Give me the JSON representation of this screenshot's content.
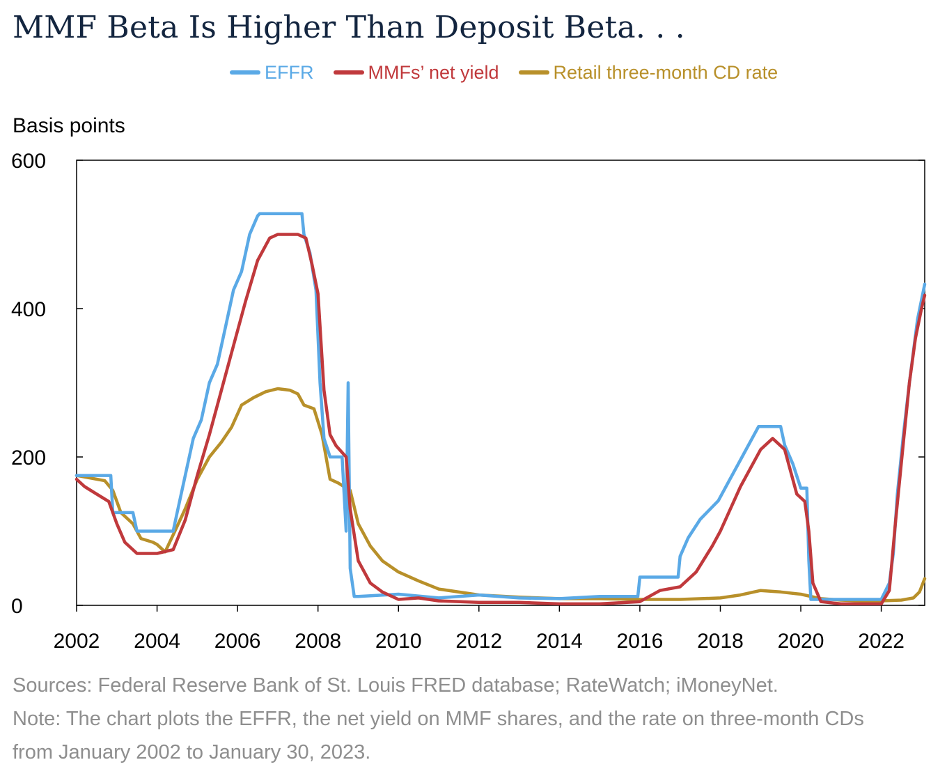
{
  "title": "MMF Beta Is Higher Than Deposit Beta. . .",
  "ylabel_text": "Basis points",
  "footer": {
    "sources": "Sources: Federal Reserve Bank of St. Louis FRED database; RateWatch; iMoneyNet.",
    "note_line1": "Note: The chart plots the EFFR, the net yield on MMF shares, and the rate on three-month CDs",
    "note_line2": "from January 2002 to January 30, 2023."
  },
  "colors": {
    "effr": "#5aa9e6",
    "mmf": "#c0393c",
    "cd": "#b8902a",
    "axis": "#000000"
  },
  "chart_data": {
    "type": "line",
    "title": "MMF Beta Is Higher Than Deposit Beta. . .",
    "ylabel": "Basis points",
    "xlabel": "",
    "xlim": [
      2002.0,
      2023.08
    ],
    "ylim": [
      0,
      600
    ],
    "x_ticks": [
      2002,
      2004,
      2006,
      2008,
      2010,
      2012,
      2014,
      2016,
      2018,
      2020,
      2022
    ],
    "x_tick_labels": [
      "2002",
      "2004",
      "2006",
      "2008",
      "2010",
      "2012",
      "2014",
      "2016",
      "2018",
      "2020",
      "2022"
    ],
    "y_ticks": [
      0,
      200,
      400,
      600
    ],
    "y_tick_labels": [
      "0",
      "200",
      "400",
      "600"
    ],
    "legend_position": "top",
    "series": [
      {
        "name": "EFFR",
        "key": "effr",
        "x": [
          2002.0,
          2002.05,
          2002.5,
          2002.85,
          2002.9,
          2003.4,
          2003.5,
          2004.0,
          2004.4,
          2004.5,
          2004.7,
          2004.9,
          2005.1,
          2005.3,
          2005.5,
          2005.7,
          2005.9,
          2006.1,
          2006.3,
          2006.5,
          2006.55,
          2007.6,
          2007.65,
          2007.8,
          2007.95,
          2008.05,
          2008.15,
          2008.3,
          2008.45,
          2008.6,
          2008.7,
          2008.75,
          2008.8,
          2008.9,
          2009.0,
          2010.0,
          2011.0,
          2012.0,
          2013.0,
          2014.0,
          2015.0,
          2015.95,
          2016.0,
          2016.95,
          2017.0,
          2017.2,
          2017.5,
          2017.95,
          2018.2,
          2018.45,
          2018.7,
          2018.95,
          2019.5,
          2019.6,
          2019.8,
          2020.0,
          2020.15,
          2020.2,
          2020.25,
          2020.4,
          2021.0,
          2022.0,
          2022.2,
          2022.3,
          2022.4,
          2022.55,
          2022.7,
          2022.9,
          2023.08
        ],
        "y": [
          175,
          175,
          175,
          175,
          125,
          125,
          100,
          100,
          100,
          125,
          175,
          225,
          250,
          300,
          325,
          375,
          425,
          450,
          500,
          525,
          528,
          528,
          500,
          475,
          425,
          300,
          225,
          200,
          200,
          200,
          100,
          300,
          50,
          12,
          12,
          15,
          10,
          14,
          10,
          9,
          12,
          12,
          38,
          38,
          66,
          91,
          116,
          141,
          166,
          191,
          216,
          241,
          241,
          216,
          191,
          158,
          158,
          60,
          8,
          8,
          8,
          8,
          30,
          70,
          150,
          230,
          300,
          385,
          433
        ]
      },
      {
        "name": "MMFs’ net yield",
        "key": "mmf",
        "x": [
          2002.0,
          2002.2,
          2002.5,
          2002.8,
          2003.0,
          2003.2,
          2003.5,
          2003.7,
          2004.0,
          2004.4,
          2004.7,
          2005.0,
          2005.3,
          2005.6,
          2005.9,
          2006.2,
          2006.5,
          2006.8,
          2007.0,
          2007.5,
          2007.7,
          2007.85,
          2008.0,
          2008.15,
          2008.3,
          2008.45,
          2008.7,
          2008.8,
          2009.0,
          2009.3,
          2009.6,
          2010.0,
          2010.5,
          2011.0,
          2012.0,
          2013.0,
          2014.0,
          2015.0,
          2016.0,
          2016.5,
          2017.0,
          2017.4,
          2017.8,
          2018.0,
          2018.5,
          2019.0,
          2019.3,
          2019.6,
          2019.9,
          2020.1,
          2020.2,
          2020.3,
          2020.5,
          2021.0,
          2022.0,
          2022.2,
          2022.35,
          2022.55,
          2022.7,
          2022.85,
          2023.0,
          2023.08
        ],
        "y": [
          170,
          160,
          150,
          140,
          110,
          85,
          70,
          70,
          70,
          75,
          115,
          175,
          230,
          290,
          350,
          410,
          465,
          495,
          500,
          500,
          495,
          460,
          420,
          290,
          230,
          215,
          200,
          130,
          60,
          30,
          18,
          8,
          10,
          6,
          4,
          4,
          2,
          2,
          5,
          20,
          25,
          45,
          80,
          100,
          160,
          210,
          225,
          210,
          150,
          140,
          100,
          30,
          5,
          2,
          2,
          20,
          110,
          220,
          300,
          360,
          400,
          418
        ]
      },
      {
        "name": "Retail three-month CD rate",
        "key": "cd",
        "x": [
          2002.0,
          2002.3,
          2002.7,
          2002.9,
          2003.1,
          2003.4,
          2003.6,
          2003.9,
          2004.0,
          2004.2,
          2004.4,
          2004.7,
          2005.0,
          2005.3,
          2005.6,
          2005.85,
          2006.1,
          2006.4,
          2006.7,
          2007.0,
          2007.3,
          2007.5,
          2007.65,
          2007.9,
          2008.1,
          2008.3,
          2008.5,
          2008.8,
          2009.0,
          2009.3,
          2009.6,
          2010.0,
          2010.5,
          2011.0,
          2012.0,
          2013.0,
          2014.0,
          2015.0,
          2016.0,
          2017.0,
          2018.0,
          2018.5,
          2019.0,
          2019.5,
          2020.0,
          2020.5,
          2021.0,
          2021.5,
          2022.0,
          2022.5,
          2022.8,
          2022.95,
          2023.08
        ],
        "y": [
          175,
          172,
          168,
          155,
          125,
          110,
          90,
          85,
          82,
          72,
          95,
          130,
          170,
          200,
          220,
          240,
          270,
          280,
          288,
          292,
          290,
          285,
          270,
          265,
          230,
          170,
          165,
          155,
          110,
          80,
          60,
          45,
          33,
          22,
          14,
          11,
          9,
          9,
          8,
          8,
          10,
          14,
          20,
          18,
          15,
          9,
          7,
          6,
          6,
          7,
          10,
          18,
          36
        ]
      }
    ]
  }
}
